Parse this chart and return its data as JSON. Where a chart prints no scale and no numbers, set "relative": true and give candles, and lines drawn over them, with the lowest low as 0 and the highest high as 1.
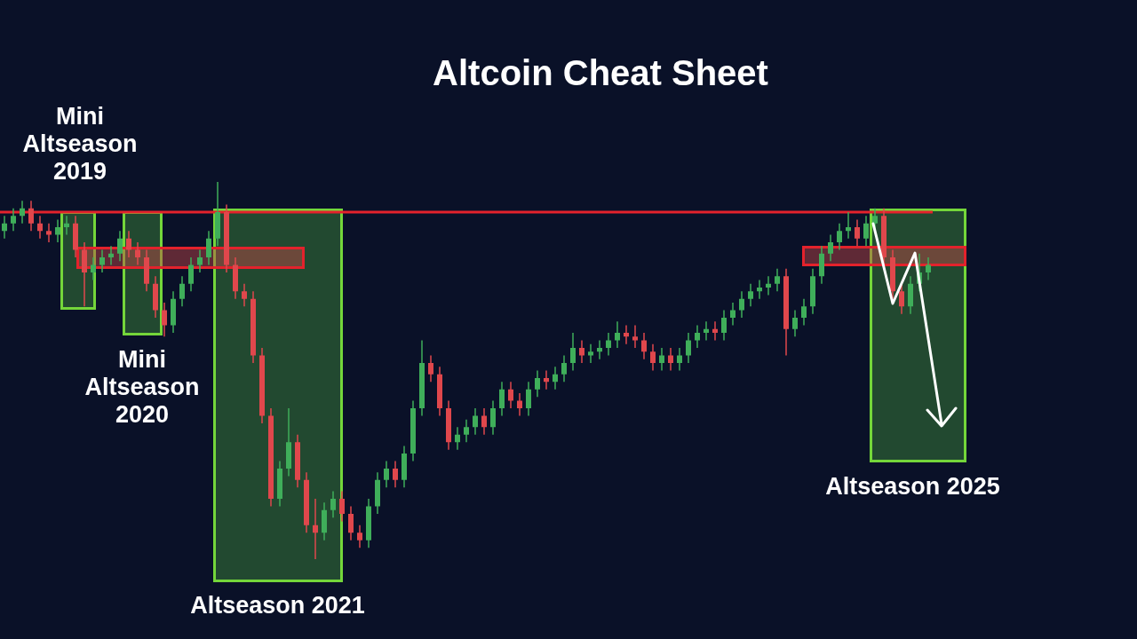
{
  "chart_data": {
    "type": "candlestick",
    "title": "Altcoin Cheat Sheet",
    "relative": true,
    "categories": [
      null,
      null,
      null,
      null,
      null,
      null,
      null,
      null,
      null,
      null,
      null,
      null,
      null,
      null,
      null,
      null,
      null,
      null,
      null,
      null,
      null,
      null,
      null,
      null,
      null,
      null,
      null,
      null,
      null,
      null,
      null,
      null,
      null,
      null,
      null,
      null,
      null,
      null,
      null,
      null,
      null,
      null,
      null,
      null,
      null,
      null,
      null,
      null,
      null,
      null,
      null,
      null,
      null,
      null,
      null,
      null,
      null,
      null,
      null,
      null,
      null,
      null,
      null,
      null,
      null,
      null,
      null,
      null,
      null,
      null,
      null,
      null,
      null,
      null,
      null,
      null,
      null,
      null,
      null,
      null,
      null,
      null,
      null,
      null,
      null,
      null,
      null,
      null,
      null,
      null,
      null,
      null,
      null,
      null,
      null,
      null,
      null,
      null,
      null,
      null,
      null,
      null,
      null,
      null,
      null
    ],
    "ohlc": [
      [
        0.87,
        0.91,
        0.85,
        0.89
      ],
      [
        0.89,
        0.93,
        0.87,
        0.91
      ],
      [
        0.91,
        0.95,
        0.89,
        0.93
      ],
      [
        0.93,
        0.95,
        0.87,
        0.89
      ],
      [
        0.89,
        0.91,
        0.85,
        0.87
      ],
      [
        0.87,
        0.89,
        0.84,
        0.86
      ],
      [
        0.86,
        0.9,
        0.84,
        0.88
      ],
      [
        0.88,
        0.91,
        0.86,
        0.89
      ],
      [
        0.89,
        0.91,
        0.8,
        0.82
      ],
      [
        0.82,
        0.84,
        0.67,
        0.76
      ],
      [
        0.76,
        0.8,
        0.74,
        0.78
      ],
      [
        0.78,
        0.82,
        0.76,
        0.8
      ],
      [
        0.8,
        0.83,
        0.78,
        0.81
      ],
      [
        0.81,
        0.87,
        0.79,
        0.85
      ],
      [
        0.85,
        0.87,
        0.8,
        0.82
      ],
      [
        0.82,
        0.84,
        0.78,
        0.8
      ],
      [
        0.8,
        0.82,
        0.71,
        0.73
      ],
      [
        0.73,
        0.75,
        0.64,
        0.66
      ],
      [
        0.66,
        0.68,
        0.59,
        0.62
      ],
      [
        0.62,
        0.71,
        0.6,
        0.69
      ],
      [
        0.69,
        0.75,
        0.67,
        0.73
      ],
      [
        0.73,
        0.8,
        0.71,
        0.78
      ],
      [
        0.78,
        0.82,
        0.76,
        0.8
      ],
      [
        0.8,
        0.87,
        0.78,
        0.85
      ],
      [
        0.85,
        1.0,
        0.83,
        0.92
      ],
      [
        0.92,
        0.94,
        0.76,
        0.78
      ],
      [
        0.78,
        0.8,
        0.69,
        0.71
      ],
      [
        0.71,
        0.73,
        0.67,
        0.69
      ],
      [
        0.69,
        0.71,
        0.52,
        0.54
      ],
      [
        0.54,
        0.56,
        0.36,
        0.38
      ],
      [
        0.38,
        0.4,
        0.14,
        0.16
      ],
      [
        0.16,
        0.26,
        0.14,
        0.24
      ],
      [
        0.24,
        0.4,
        0.22,
        0.31
      ],
      [
        0.31,
        0.33,
        0.19,
        0.21
      ],
      [
        0.21,
        0.23,
        0.07,
        0.09
      ],
      [
        0.09,
        0.16,
        0.0,
        0.07
      ],
      [
        0.07,
        0.15,
        0.05,
        0.13
      ],
      [
        0.13,
        0.18,
        0.11,
        0.16
      ],
      [
        0.16,
        0.18,
        0.1,
        0.12
      ],
      [
        0.12,
        0.14,
        0.05,
        0.07
      ],
      [
        0.07,
        0.09,
        0.03,
        0.05
      ],
      [
        0.05,
        0.16,
        0.03,
        0.14
      ],
      [
        0.14,
        0.23,
        0.12,
        0.21
      ],
      [
        0.21,
        0.26,
        0.19,
        0.24
      ],
      [
        0.24,
        0.26,
        0.19,
        0.21
      ],
      [
        0.21,
        0.3,
        0.19,
        0.28
      ],
      [
        0.28,
        0.42,
        0.26,
        0.4
      ],
      [
        0.4,
        0.58,
        0.38,
        0.52
      ],
      [
        0.52,
        0.54,
        0.47,
        0.49
      ],
      [
        0.49,
        0.51,
        0.38,
        0.4
      ],
      [
        0.4,
        0.42,
        0.29,
        0.31
      ],
      [
        0.31,
        0.35,
        0.29,
        0.33
      ],
      [
        0.33,
        0.37,
        0.31,
        0.35
      ],
      [
        0.35,
        0.4,
        0.33,
        0.38
      ],
      [
        0.38,
        0.4,
        0.33,
        0.35
      ],
      [
        0.35,
        0.42,
        0.33,
        0.4
      ],
      [
        0.4,
        0.47,
        0.38,
        0.45
      ],
      [
        0.45,
        0.47,
        0.4,
        0.42
      ],
      [
        0.42,
        0.44,
        0.38,
        0.4
      ],
      [
        0.4,
        0.47,
        0.38,
        0.45
      ],
      [
        0.45,
        0.5,
        0.43,
        0.48
      ],
      [
        0.48,
        0.5,
        0.45,
        0.47
      ],
      [
        0.47,
        0.51,
        0.45,
        0.49
      ],
      [
        0.49,
        0.54,
        0.47,
        0.52
      ],
      [
        0.52,
        0.6,
        0.5,
        0.56
      ],
      [
        0.56,
        0.58,
        0.52,
        0.54
      ],
      [
        0.54,
        0.57,
        0.52,
        0.55
      ],
      [
        0.55,
        0.58,
        0.53,
        0.56
      ],
      [
        0.56,
        0.6,
        0.54,
        0.58
      ],
      [
        0.58,
        0.63,
        0.56,
        0.6
      ],
      [
        0.6,
        0.62,
        0.57,
        0.59
      ],
      [
        0.59,
        0.62,
        0.56,
        0.58
      ],
      [
        0.58,
        0.6,
        0.53,
        0.55
      ],
      [
        0.55,
        0.57,
        0.5,
        0.52
      ],
      [
        0.52,
        0.56,
        0.5,
        0.54
      ],
      [
        0.54,
        0.56,
        0.5,
        0.52
      ],
      [
        0.52,
        0.56,
        0.5,
        0.54
      ],
      [
        0.54,
        0.6,
        0.52,
        0.58
      ],
      [
        0.58,
        0.62,
        0.56,
        0.6
      ],
      [
        0.6,
        0.63,
        0.58,
        0.61
      ],
      [
        0.61,
        0.63,
        0.58,
        0.6
      ],
      [
        0.6,
        0.66,
        0.58,
        0.64
      ],
      [
        0.64,
        0.68,
        0.62,
        0.66
      ],
      [
        0.66,
        0.71,
        0.64,
        0.69
      ],
      [
        0.69,
        0.73,
        0.67,
        0.71
      ],
      [
        0.71,
        0.74,
        0.69,
        0.72
      ],
      [
        0.72,
        0.75,
        0.7,
        0.73
      ],
      [
        0.73,
        0.77,
        0.71,
        0.75
      ],
      [
        0.75,
        0.77,
        0.54,
        0.61
      ],
      [
        0.61,
        0.66,
        0.59,
        0.64
      ],
      [
        0.64,
        0.69,
        0.62,
        0.67
      ],
      [
        0.67,
        0.77,
        0.65,
        0.75
      ],
      [
        0.75,
        0.83,
        0.73,
        0.81
      ],
      [
        0.81,
        0.86,
        0.79,
        0.84
      ],
      [
        0.84,
        0.89,
        0.82,
        0.87
      ],
      [
        0.87,
        0.92,
        0.85,
        0.88
      ],
      [
        0.88,
        0.9,
        0.83,
        0.85
      ],
      [
        0.85,
        0.91,
        0.83,
        0.89
      ],
      [
        0.89,
        0.93,
        0.87,
        0.91
      ],
      [
        0.91,
        0.93,
        0.78,
        0.8
      ],
      [
        0.8,
        0.82,
        0.69,
        0.71
      ],
      [
        0.71,
        0.73,
        0.65,
        0.67
      ],
      [
        0.67,
        0.75,
        0.65,
        0.73
      ],
      [
        0.73,
        0.81,
        0.71,
        0.76
      ],
      [
        0.76,
        0.8,
        0.74,
        0.78
      ]
    ],
    "ref_lines": [
      {
        "axis": "y",
        "value": 0.92,
        "color": "#e3222c"
      }
    ],
    "annotations": [
      "Mini Altseason 2019",
      "Mini Altseason 2020",
      "Altseason 2021",
      "Altseason 2025"
    ]
  }
}
